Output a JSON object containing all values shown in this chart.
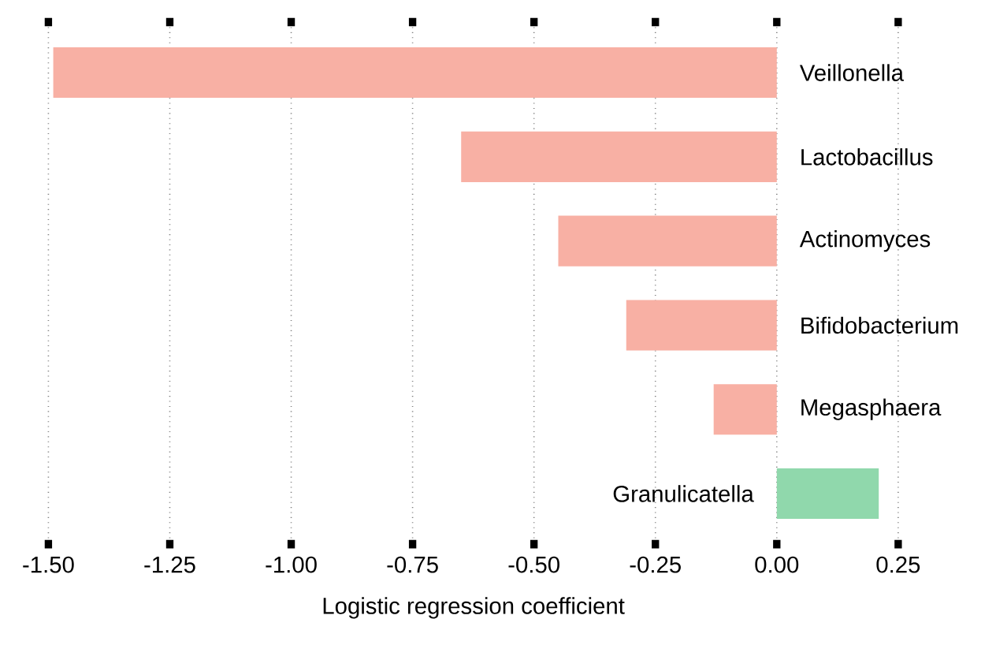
{
  "chart_data": {
    "type": "bar",
    "orientation": "horizontal",
    "xlabel": "Logistic regression coefficient",
    "categories": [
      "Veillonella",
      "Lactobacillus",
      "Actinomyces",
      "Bifidobacterium",
      "Megasphaera",
      "Granulicatella"
    ],
    "values": [
      -1.49,
      -0.65,
      -0.45,
      -0.31,
      -0.13,
      0.21
    ],
    "colors": [
      "#f8b0a4",
      "#f8b0a4",
      "#f8b0a4",
      "#f8b0a4",
      "#f8b0a4",
      "#90d8ac"
    ],
    "xlim": [
      -1.5,
      0.25
    ],
    "xticks": [
      {
        "value": -1.5,
        "label": "-1.50"
      },
      {
        "value": -1.25,
        "label": "-1.25"
      },
      {
        "value": -1.0,
        "label": "-1.00"
      },
      {
        "value": -0.75,
        "label": "-0.75"
      },
      {
        "value": -0.5,
        "label": "-0.50"
      },
      {
        "value": -0.25,
        "label": "-0.25"
      },
      {
        "value": 0,
        "label": "0.00"
      },
      {
        "value": 0.25,
        "label": "0.25"
      }
    ],
    "grid": "x"
  }
}
